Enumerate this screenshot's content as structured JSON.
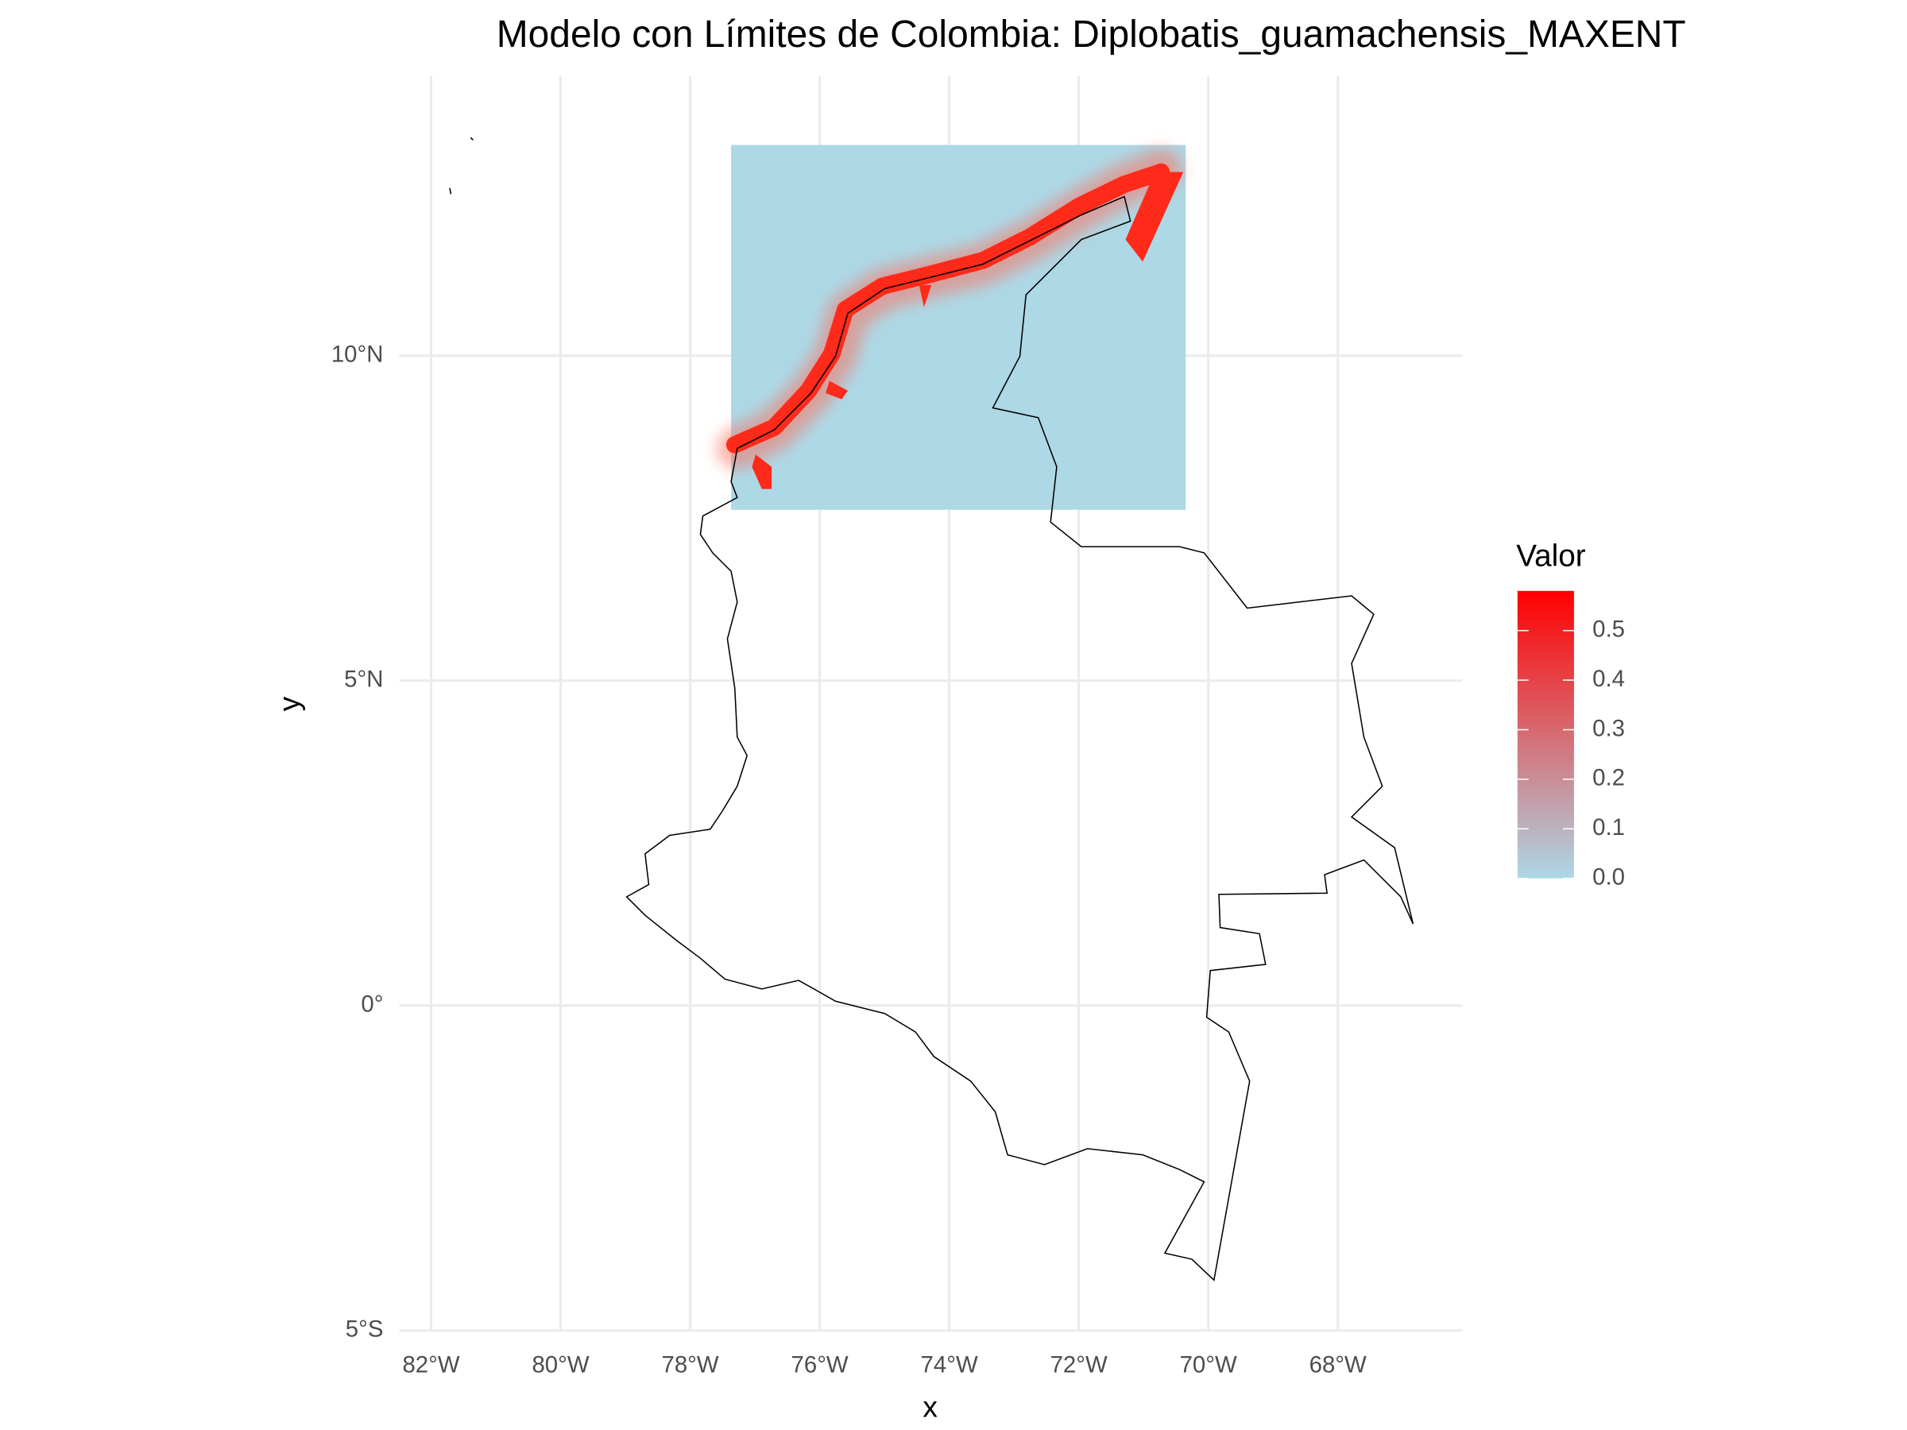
{
  "chart_data": {
    "type": "map",
    "title": "Modelo con Límites de Colombia: Diplobatis_guamachensis_MAXENT",
    "x_label": "x",
    "y_label": "y",
    "xlim": [
      -82.49,
      -66.08
    ],
    "xticks": [
      {
        "value": -82,
        "label": "82°W"
      },
      {
        "value": -80,
        "label": "80°W"
      },
      {
        "value": -78,
        "label": "78°W"
      },
      {
        "value": -76,
        "label": "76°W"
      },
      {
        "value": -74,
        "label": "74°W"
      },
      {
        "value": -72,
        "label": "72°W"
      },
      {
        "value": -70,
        "label": "70°W"
      },
      {
        "value": -68,
        "label": "68°W"
      }
    ],
    "ylim": [
      -5,
      14.3
    ],
    "yticks": [
      {
        "value": -5,
        "label": "5°S"
      },
      {
        "value": 0,
        "label": "0°"
      },
      {
        "value": 5,
        "label": "5°N"
      },
      {
        "value": 10,
        "label": "10°N"
      }
    ],
    "grid": true,
    "legend": {
      "title": "Valor",
      "position": "right",
      "low_color": "#add8e6",
      "high_color": "#ff0000",
      "limits": [
        0,
        0.58
      ],
      "ticks": [
        {
          "value": 0,
          "label": "0.0"
        },
        0.1,
        0.2,
        0.3,
        0.4,
        0.5
      ]
    }
  }
}
